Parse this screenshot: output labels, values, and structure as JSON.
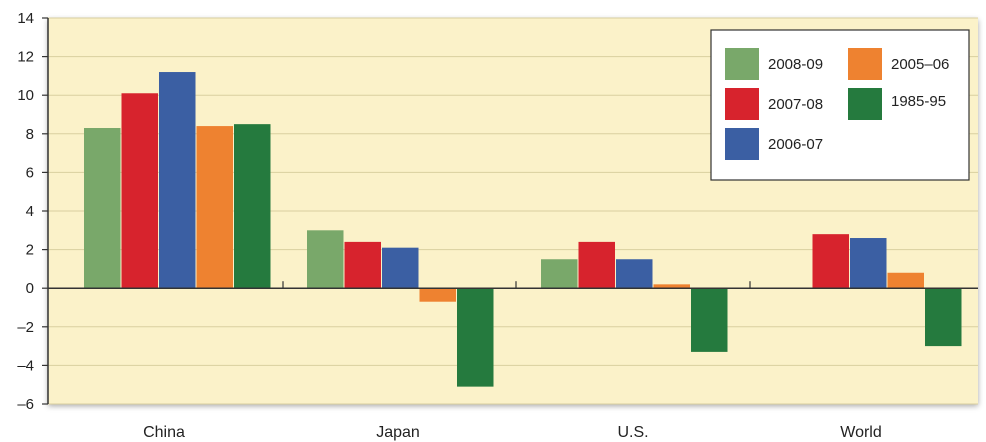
{
  "chart_data": {
    "type": "bar",
    "title": "",
    "xlabel": "",
    "ylabel": "",
    "categories": [
      "China",
      "Japan",
      "U.S.",
      "World"
    ],
    "series": [
      {
        "name": "2008-09",
        "color": "#79a86a",
        "values": [
          8.3,
          3.0,
          1.5,
          null
        ]
      },
      {
        "name": "2007-08",
        "color": "#d7232d",
        "values": [
          10.1,
          2.4,
          2.4,
          2.8
        ]
      },
      {
        "name": "2006-07",
        "color": "#3b5fa3",
        "values": [
          11.2,
          2.1,
          1.5,
          2.6
        ]
      },
      {
        "name": "2005–06",
        "color": "#ee8230",
        "values": [
          8.4,
          -0.7,
          0.2,
          0.8
        ]
      },
      {
        "name": "1985-95",
        "color": "#257a3e",
        "values": [
          8.5,
          -5.1,
          -3.3,
          -3.0
        ]
      }
    ],
    "ylim": [
      -6,
      14
    ],
    "yticks": [
      -6,
      -4,
      -2,
      0,
      2,
      4,
      6,
      8,
      10,
      12,
      14
    ],
    "ytick_labels": [
      "–6",
      "–4",
      "–2",
      "0",
      "2",
      "4",
      "6",
      "8",
      "10",
      "12",
      "14"
    ],
    "grid": true,
    "legend_position": "top-right",
    "colors": {
      "plot_background": "#fbf2c9",
      "gridline": "#d9cf9f",
      "axis": "#333333"
    }
  }
}
